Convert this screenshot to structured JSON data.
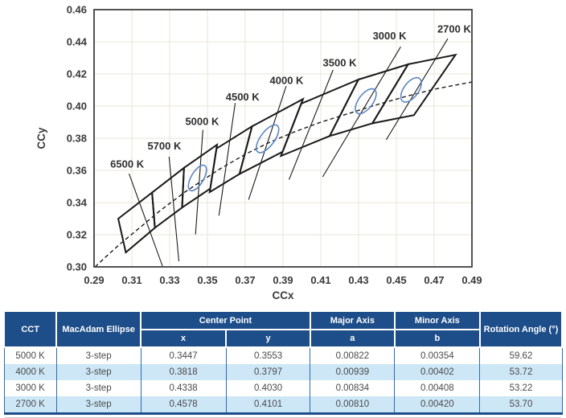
{
  "chart_data": {
    "type": "scatter",
    "title": "",
    "xlabel": "CCx",
    "ylabel": "CCy",
    "xlim": [
      0.29,
      0.49
    ],
    "ylim": [
      0.3,
      0.46
    ],
    "xticks": [
      0.29,
      0.31,
      0.33,
      0.35,
      0.37,
      0.39,
      0.41,
      0.43,
      0.45,
      0.47,
      0.49
    ],
    "yticks": [
      0.3,
      0.32,
      0.34,
      0.36,
      0.38,
      0.4,
      0.42,
      0.44,
      0.46
    ],
    "grid": true,
    "legend": "none",
    "planckian_locus": [
      [
        0.2905,
        0.3
      ],
      [
        0.296,
        0.306
      ],
      [
        0.304,
        0.3145
      ],
      [
        0.3135,
        0.3237
      ],
      [
        0.325,
        0.335
      ],
      [
        0.338,
        0.3465
      ],
      [
        0.3451,
        0.352
      ],
      [
        0.356,
        0.3605
      ],
      [
        0.37,
        0.37
      ],
      [
        0.382,
        0.377
      ],
      [
        0.395,
        0.3835
      ],
      [
        0.41,
        0.39
      ],
      [
        0.425,
        0.3955
      ],
      [
        0.44,
        0.401
      ],
      [
        0.455,
        0.406
      ],
      [
        0.47,
        0.4105
      ],
      [
        0.49,
        0.415
      ]
    ],
    "cct_bins": [
      {
        "label": "6500 K",
        "label_pos": [
          0.3075,
          0.364
        ],
        "leader": [
          0.3085,
          0.358,
          0.3262,
          0.3005
        ],
        "quad": [
          [
            0.3028,
            0.33
          ],
          [
            0.3207,
            0.3462
          ],
          [
            0.3222,
            0.3243
          ],
          [
            0.3068,
            0.309
          ]
        ]
      },
      {
        "label": "5700 K",
        "label_pos": [
          0.3272,
          0.3752
        ],
        "leader": [
          0.3297,
          0.3685,
          0.3349,
          0.3035
        ],
        "quad": [
          [
            0.3207,
            0.3462
          ],
          [
            0.3376,
            0.3616
          ],
          [
            0.3366,
            0.3369
          ],
          [
            0.3222,
            0.3243
          ]
        ]
      },
      {
        "label": "5000 K",
        "label_pos": [
          0.3472,
          0.3906
        ],
        "leader": [
          0.3476,
          0.3852,
          0.3437,
          0.3202
        ],
        "quad": [
          [
            0.3376,
            0.3616
          ],
          [
            0.3551,
            0.376
          ],
          [
            0.3515,
            0.3487
          ],
          [
            0.3366,
            0.3369
          ]
        ]
      },
      {
        "label": "4500 K",
        "label_pos": [
          0.3686,
          0.4058
        ],
        "leader": [
          0.3647,
          0.4019,
          0.3561,
          0.3319
        ],
        "quad": [
          [
            0.3548,
            0.3736
          ],
          [
            0.3736,
            0.3874
          ],
          [
            0.367,
            0.3578
          ],
          [
            0.3512,
            0.3465
          ]
        ]
      },
      {
        "label": "4000 K",
        "label_pos": [
          0.3919,
          0.416
        ],
        "leader": [
          0.3917,
          0.4125,
          0.3718,
          0.3418
        ],
        "quad": [
          [
            0.3736,
            0.3874
          ],
          [
            0.4006,
            0.4044
          ],
          [
            0.3898,
            0.3716
          ],
          [
            0.367,
            0.3578
          ]
        ]
      },
      {
        "label": "3500 K",
        "label_pos": [
          0.42,
          0.427
        ],
        "leader": [
          0.4165,
          0.4225,
          0.3932,
          0.3543
        ],
        "quad": [
          [
            0.3996,
            0.4015
          ],
          [
            0.4299,
            0.4165
          ],
          [
            0.4147,
            0.3814
          ],
          [
            0.3889,
            0.369
          ]
        ]
      },
      {
        "label": "3000 K",
        "label_pos": [
          0.4464,
          0.4438
        ],
        "leader": [
          0.4523,
          0.4369,
          0.411,
          0.356
        ],
        "quad": [
          [
            0.4299,
            0.4165
          ],
          [
            0.4562,
            0.426
          ],
          [
            0.4373,
            0.3893
          ],
          [
            0.4147,
            0.3814
          ]
        ]
      },
      {
        "label": "2700 K",
        "label_pos": [
          0.4806,
          0.448
        ],
        "leader": [
          0.4772,
          0.4419,
          0.4446,
          0.379
        ],
        "quad": [
          [
            0.4562,
            0.426
          ],
          [
            0.4813,
            0.4319
          ],
          [
            0.4593,
            0.3944
          ],
          [
            0.4373,
            0.3893
          ]
        ]
      }
    ],
    "macadam_ellipses": [
      {
        "cct": "5000 K",
        "center": [
          0.3447,
          0.3553
        ],
        "a": 0.00822,
        "b": 0.00354,
        "rotation_deg": 59.62
      },
      {
        "cct": "4000 K",
        "center": [
          0.3818,
          0.3797
        ],
        "a": 0.00939,
        "b": 0.00402,
        "rotation_deg": 53.72
      },
      {
        "cct": "3000 K",
        "center": [
          0.4338,
          0.403
        ],
        "a": 0.00834,
        "b": 0.00408,
        "rotation_deg": 53.22
      },
      {
        "cct": "2700 K",
        "center": [
          0.4578,
          0.4101
        ],
        "a": 0.0081,
        "b": 0.0042,
        "rotation_deg": 53.7
      }
    ],
    "colors": {
      "grid": "#e8e4d6",
      "frame": "#3f3f3f",
      "bin_stroke": "#1a1a1a",
      "locus": "#1a1a1a",
      "ellipse": "#5b86c2",
      "tick_text": "#3a3a3a",
      "label_text": "#2e2e2e"
    }
  },
  "table": {
    "headers": {
      "cct": "CCT",
      "macadam": "MacAdam Ellipse",
      "center_point": "Center Point",
      "x": "x",
      "y": "y",
      "major_axis": "Major Axis",
      "a": "a",
      "minor_axis": "Minor Axis",
      "b": "b",
      "rotation": "Rotation Angle (°)"
    },
    "rows": [
      [
        "5000 K",
        "3-step",
        "0.3447",
        "0.3553",
        "0.00822",
        "0.00354",
        "59.62"
      ],
      [
        "4000 K",
        "3-step",
        "0.3818",
        "0.3797",
        "0.00939",
        "0.00402",
        "53.72"
      ],
      [
        "3000 K",
        "3-step",
        "0.4338",
        "0.4030",
        "0.00834",
        "0.00408",
        "53.22"
      ],
      [
        "2700 K",
        "3-step",
        "0.4578",
        "0.4101",
        "0.00810",
        "0.00420",
        "53.70"
      ]
    ],
    "colors": {
      "header_bg": "#1d4e89",
      "stripe": "#cde7f7",
      "divider": "#2d6ca8",
      "text": "#4a4a4a"
    }
  }
}
